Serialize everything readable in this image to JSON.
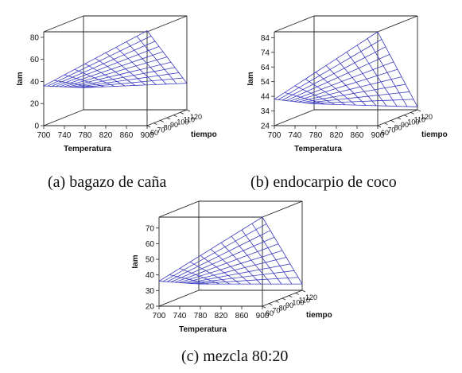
{
  "chart_data": [
    {
      "type": "surface",
      "caption": "(a) bagazo de caña",
      "xlabel": "Temperatura",
      "ylabel": "tiempo",
      "zlabel": "Iam",
      "x_ticks": [
        "700",
        "740",
        "780",
        "820",
        "860",
        "900"
      ],
      "y_ticks": [
        "60",
        "70",
        "80",
        "90",
        "100",
        "110",
        "120"
      ],
      "z_ticks": [
        "0",
        "20",
        "40",
        "60",
        "80"
      ],
      "xlim": [
        700,
        900
      ],
      "ylim": [
        60,
        120
      ],
      "zlim": [
        0,
        85
      ],
      "surface": {
        "x": [
          700,
          900
        ],
        "y": [
          60,
          120
        ],
        "z": [
          [
            36,
            20
          ],
          [
            86,
            24
          ]
        ]
      },
      "grid_n": 10
    },
    {
      "type": "surface",
      "caption": "(b) endocarpio de coco",
      "xlabel": "Temperatura",
      "ylabel": "tiempo",
      "zlabel": "Iam",
      "x_ticks": [
        "700",
        "740",
        "780",
        "820",
        "860",
        "900"
      ],
      "y_ticks": [
        "60",
        "70",
        "80",
        "90",
        "100",
        "110",
        "120"
      ],
      "z_ticks": [
        "24",
        "34",
        "44",
        "54",
        "64",
        "74",
        "84"
      ],
      "xlim": [
        700,
        900
      ],
      "ylim": [
        60,
        120
      ],
      "zlim": [
        24,
        88
      ],
      "surface": {
        "x": [
          700,
          900
        ],
        "y": [
          60,
          120
        ],
        "z": [
          [
            42,
            28
          ],
          [
            88,
            26
          ]
        ]
      },
      "grid_n": 10
    },
    {
      "type": "surface",
      "caption": "(c) mezcla 80:20",
      "xlabel": "Temperatura",
      "ylabel": "tiempo",
      "zlabel": "Iam",
      "x_ticks": [
        "700",
        "740",
        "780",
        "820",
        "860",
        "900"
      ],
      "y_ticks": [
        "60",
        "70",
        "80",
        "90",
        "100",
        "110",
        "120"
      ],
      "z_ticks": [
        "20",
        "30",
        "40",
        "50",
        "60",
        "70"
      ],
      "xlim": [
        700,
        900
      ],
      "ylim": [
        60,
        120
      ],
      "zlim": [
        20,
        77
      ],
      "surface": {
        "x": [
          700,
          900
        ],
        "y": [
          60,
          120
        ],
        "z": [
          [
            36,
            24
          ],
          [
            77,
            24
          ]
        ]
      },
      "grid_n": 10
    }
  ]
}
